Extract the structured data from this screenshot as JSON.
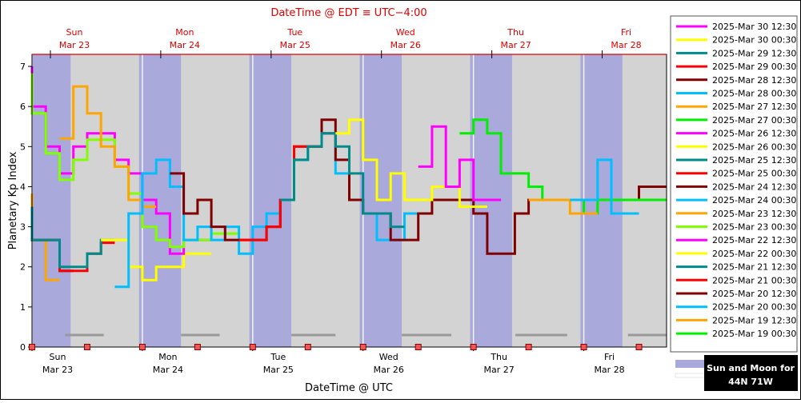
{
  "header": {
    "top_title": "DateTime @ EDT ≡ UTC−4:00",
    "bottom_title": "DateTime @ UTC",
    "ylabel": "Planetary Kp Index"
  },
  "badge": {
    "line1": "Sun and Moon for",
    "line2": "44N 71W"
  },
  "colors": {
    "top_text": "#dd0000",
    "plot_bg": "#d3d3d3",
    "night": "#a9a9dc",
    "frame": "#000000"
  },
  "chart_data": {
    "type": "line",
    "title": "",
    "xlabel": "DateTime @ UTC",
    "ylabel": "Planetary Kp Index",
    "xlim_days": [
      23.0,
      28.75
    ],
    "ylim": [
      0,
      7.3
    ],
    "yticks": [
      0,
      1,
      2,
      3,
      4,
      5,
      6,
      7
    ],
    "days": [
      {
        "day": 23,
        "dow": "Sun",
        "date": "Mar 23"
      },
      {
        "day": 24,
        "dow": "Mon",
        "date": "Mar 24"
      },
      {
        "day": 25,
        "dow": "Tue",
        "date": "Mar 25"
      },
      {
        "day": 26,
        "dow": "Wed",
        "date": "Mar 26"
      },
      {
        "day": 27,
        "dow": "Thu",
        "date": "Mar 27"
      },
      {
        "day": 28,
        "dow": "Fri",
        "date": "Mar 28"
      }
    ],
    "nights": [
      [
        22.97,
        23.35
      ],
      [
        23.97,
        24.35
      ],
      [
        24.97,
        25.35
      ],
      [
        25.97,
        26.35
      ],
      [
        26.97,
        27.35
      ],
      [
        27.97,
        28.35
      ]
    ],
    "moon_bars": [
      [
        23.3,
        23.65,
        0.3
      ],
      [
        24.35,
        24.7,
        0.3
      ],
      [
        25.35,
        25.75,
        0.3
      ],
      [
        26.35,
        26.8,
        0.3
      ],
      [
        27.38,
        27.85,
        0.3
      ],
      [
        28.4,
        28.9,
        0.3
      ]
    ],
    "series": [
      {
        "name": "2025-Mar 30 12:30",
        "color": "#ff00ff",
        "points": []
      },
      {
        "name": "2025-Mar 30 00:30",
        "color": "#ffff00",
        "points": []
      },
      {
        "name": "2025-Mar 29 12:30",
        "color": "#008b8b",
        "points": []
      },
      {
        "name": "2025-Mar 29 00:30",
        "color": "#ff0000",
        "points": []
      },
      {
        "name": "2025-Mar 28 12:30",
        "color": "#800000",
        "points": []
      },
      {
        "name": "2025-Mar 28 00:30",
        "color": "#00bfff",
        "points": [
          [
            27.875,
            3.67
          ],
          [
            28.0,
            3.67
          ],
          [
            28.125,
            4.67
          ],
          [
            28.25,
            3.33
          ],
          [
            28.375,
            3.33
          ]
        ]
      },
      {
        "name": "2025-Mar 27 12:30",
        "color": "#ffa500",
        "points": [
          [
            27.5,
            3.67
          ],
          [
            27.625,
            3.67
          ],
          [
            27.75,
            3.67
          ],
          [
            27.875,
            3.33
          ],
          [
            28.0,
            3.33
          ]
        ]
      },
      {
        "name": "2025-Mar 27 00:30",
        "color": "#00ee00",
        "points": [
          [
            26.875,
            5.33
          ],
          [
            27.0,
            5.67
          ],
          [
            27.125,
            5.33
          ],
          [
            27.25,
            4.33
          ],
          [
            27.375,
            4.33
          ],
          [
            27.5,
            4.0
          ],
          [
            27.625,
            3.67
          ],
          [
            27.75,
            3.67
          ],
          [
            27.875,
            3.67
          ],
          [
            28.0,
            3.33
          ],
          [
            28.125,
            3.67
          ],
          [
            28.25,
            3.67
          ],
          [
            28.375,
            3.67
          ],
          [
            28.5,
            3.67
          ],
          [
            28.625,
            3.67
          ]
        ]
      },
      {
        "name": "2025-Mar 26 12:30",
        "color": "#ff00ff",
        "points": [
          [
            26.5,
            4.5
          ],
          [
            26.625,
            5.5
          ],
          [
            26.75,
            4.0
          ],
          [
            26.875,
            4.67
          ],
          [
            27.0,
            3.67
          ],
          [
            27.125,
            3.67
          ]
        ]
      },
      {
        "name": "2025-Mar 26 00:30",
        "color": "#ffff00",
        "points": [
          [
            25.75,
            5.33
          ],
          [
            25.875,
            5.67
          ],
          [
            26.0,
            4.67
          ],
          [
            26.125,
            3.67
          ],
          [
            26.25,
            4.33
          ],
          [
            26.375,
            3.67
          ],
          [
            26.5,
            3.67
          ],
          [
            26.625,
            4.0
          ],
          [
            26.75,
            4.0
          ],
          [
            26.875,
            3.5
          ],
          [
            27.0,
            3.5
          ]
        ]
      },
      {
        "name": "2025-Mar 25 12:30",
        "color": "#008b8b",
        "points": [
          [
            25.25,
            3.67
          ],
          [
            25.375,
            4.67
          ],
          [
            25.5,
            5.0
          ],
          [
            25.625,
            5.33
          ],
          [
            25.75,
            5.0
          ],
          [
            25.875,
            4.33
          ],
          [
            26.0,
            3.33
          ],
          [
            26.125,
            3.33
          ],
          [
            26.25,
            3.0
          ]
        ]
      },
      {
        "name": "2025-Mar 25 00:30",
        "color": "#ff0000",
        "points": [
          [
            24.875,
            2.67
          ],
          [
            25.0,
            2.67
          ],
          [
            25.125,
            3.0
          ],
          [
            25.25,
            3.67
          ],
          [
            25.375,
            5.0
          ],
          [
            25.5,
            5.0
          ],
          [
            25.625,
            5.33
          ]
        ]
      },
      {
        "name": "2025-Mar 24 12:30",
        "color": "#800000",
        "points": [
          [
            24.25,
            4.33
          ],
          [
            24.375,
            3.33
          ],
          [
            24.5,
            3.67
          ],
          [
            24.625,
            3.0
          ],
          [
            24.75,
            2.67
          ],
          [
            24.875,
            2.67
          ],
          [
            25.0,
            2.67
          ],
          [
            25.125,
            3.0
          ],
          [
            25.25,
            3.67
          ],
          [
            25.375,
            5.0
          ],
          [
            25.5,
            5.0
          ],
          [
            25.625,
            5.67
          ],
          [
            25.75,
            4.67
          ],
          [
            25.875,
            3.67
          ],
          [
            26.0,
            3.33
          ],
          [
            26.125,
            3.33
          ],
          [
            26.25,
            2.67
          ],
          [
            26.375,
            2.67
          ],
          [
            26.5,
            3.33
          ],
          [
            26.625,
            3.67
          ],
          [
            26.75,
            3.67
          ],
          [
            26.875,
            3.67
          ],
          [
            27.0,
            3.33
          ],
          [
            27.125,
            2.33
          ],
          [
            27.25,
            2.33
          ],
          [
            27.375,
            3.33
          ],
          [
            27.5,
            3.67
          ],
          [
            27.625,
            3.67
          ],
          [
            27.75,
            3.67
          ],
          [
            27.875,
            3.67
          ],
          [
            28.0,
            3.67
          ],
          [
            28.125,
            3.67
          ],
          [
            28.25,
            3.67
          ],
          [
            28.375,
            3.67
          ],
          [
            28.5,
            4.0
          ],
          [
            28.625,
            4.0
          ]
        ]
      },
      {
        "name": "2025-Mar 24 00:30",
        "color": "#00bfff",
        "points": [
          [
            23.75,
            1.5
          ],
          [
            23.875,
            3.33
          ],
          [
            24.0,
            4.33
          ],
          [
            24.125,
            4.67
          ],
          [
            24.25,
            4.0
          ],
          [
            24.375,
            2.67
          ],
          [
            24.5,
            3.0
          ],
          [
            24.625,
            2.67
          ],
          [
            24.75,
            3.0
          ],
          [
            24.875,
            2.33
          ],
          [
            25.0,
            3.0
          ],
          [
            25.125,
            3.33
          ],
          [
            25.25,
            3.67
          ],
          [
            25.375,
            4.67
          ],
          [
            25.5,
            5.0
          ],
          [
            25.625,
            5.33
          ],
          [
            25.75,
            4.33
          ],
          [
            25.875,
            3.67
          ],
          [
            26.0,
            3.33
          ],
          [
            26.125,
            2.67
          ],
          [
            26.25,
            2.67
          ],
          [
            26.375,
            3.33
          ]
        ]
      },
      {
        "name": "2025-Mar 23 12:30",
        "color": "#ffa500",
        "points": [
          [
            23.25,
            5.2
          ],
          [
            23.375,
            6.5
          ],
          [
            23.5,
            5.83
          ],
          [
            23.625,
            5.0
          ],
          [
            23.75,
            4.5
          ],
          [
            23.875,
            3.67
          ],
          [
            24.0,
            3.5
          ]
        ]
      },
      {
        "name": "2025-Mar 23 00:30",
        "color": "#7fff00",
        "points": [
          [
            22.75,
            5.83
          ],
          [
            22.875,
            6.83
          ],
          [
            23.0,
            5.83
          ],
          [
            23.125,
            4.83
          ],
          [
            23.25,
            4.17
          ],
          [
            23.375,
            4.67
          ],
          [
            23.5,
            5.17
          ],
          [
            23.625,
            5.17
          ],
          [
            23.75,
            4.5
          ],
          [
            23.875,
            3.83
          ],
          [
            24.0,
            3.0
          ],
          [
            24.125,
            2.67
          ],
          [
            24.25,
            2.5
          ],
          [
            24.375,
            2.67
          ],
          [
            24.5,
            2.67
          ],
          [
            24.625,
            2.83
          ],
          [
            24.75,
            2.83
          ]
        ]
      },
      {
        "name": "2025-Mar 22 12:30",
        "color": "#ff00ff",
        "points": [
          [
            22.75,
            6.0
          ],
          [
            22.875,
            7.0
          ],
          [
            23.0,
            6.0
          ],
          [
            23.125,
            5.0
          ],
          [
            23.25,
            4.33
          ],
          [
            23.375,
            5.0
          ],
          [
            23.5,
            5.33
          ],
          [
            23.625,
            5.33
          ],
          [
            23.75,
            4.67
          ],
          [
            23.875,
            4.33
          ],
          [
            24.0,
            3.67
          ],
          [
            24.125,
            3.33
          ],
          [
            24.25,
            2.33
          ],
          [
            24.375,
            2.67
          ],
          [
            24.5,
            2.67
          ]
        ]
      },
      {
        "name": "2025-Mar 22 00:30",
        "color": "#ffff00",
        "points": [
          [
            23.625,
            2.67
          ],
          [
            23.75,
            2.67
          ],
          [
            23.875,
            2.0
          ],
          [
            24.0,
            1.67
          ],
          [
            24.125,
            2.0
          ],
          [
            24.25,
            2.0
          ],
          [
            24.375,
            2.33
          ],
          [
            24.5,
            2.33
          ]
        ]
      },
      {
        "name": "2025-Mar 21 12:30",
        "color": "#008b8b",
        "points": [
          [
            22.75,
            3.5
          ],
          [
            22.875,
            3.33
          ],
          [
            23.0,
            2.67
          ],
          [
            23.125,
            2.67
          ],
          [
            23.25,
            2.0
          ],
          [
            23.375,
            2.0
          ],
          [
            23.5,
            2.33
          ],
          [
            23.625,
            2.67
          ]
        ]
      },
      {
        "name": "2025-Mar 21 00:30",
        "color": "#ff0000",
        "points": [
          [
            22.75,
            3.5
          ],
          [
            22.875,
            3.33
          ],
          [
            23.0,
            2.67
          ],
          [
            23.125,
            2.67
          ],
          [
            23.25,
            1.9
          ],
          [
            23.375,
            1.9
          ],
          [
            23.5,
            2.33
          ],
          [
            23.625,
            2.6
          ]
        ]
      },
      {
        "name": "2025-Mar 20 12:30",
        "color": "#800000",
        "points": [
          [
            22.75,
            3.5
          ],
          [
            22.875,
            3.33
          ],
          [
            23.0,
            2.67
          ],
          [
            23.125,
            2.67
          ],
          [
            23.25,
            1.9
          ]
        ]
      },
      {
        "name": "2025-Mar 20 00:30",
        "color": "#00bfff",
        "points": []
      },
      {
        "name": "2025-Mar 19 12:30",
        "color": "#ffa500",
        "points": [
          [
            22.75,
            3.83
          ],
          [
            22.875,
            3.5
          ],
          [
            23.0,
            2.67
          ],
          [
            23.125,
            1.67
          ]
        ]
      },
      {
        "name": "2025-Mar 19 00:30",
        "color": "#00ee00",
        "points": [
          [
            22.75,
            3.5
          ],
          [
            22.875,
            3.33
          ],
          [
            23.0,
            2.67
          ]
        ]
      }
    ]
  }
}
